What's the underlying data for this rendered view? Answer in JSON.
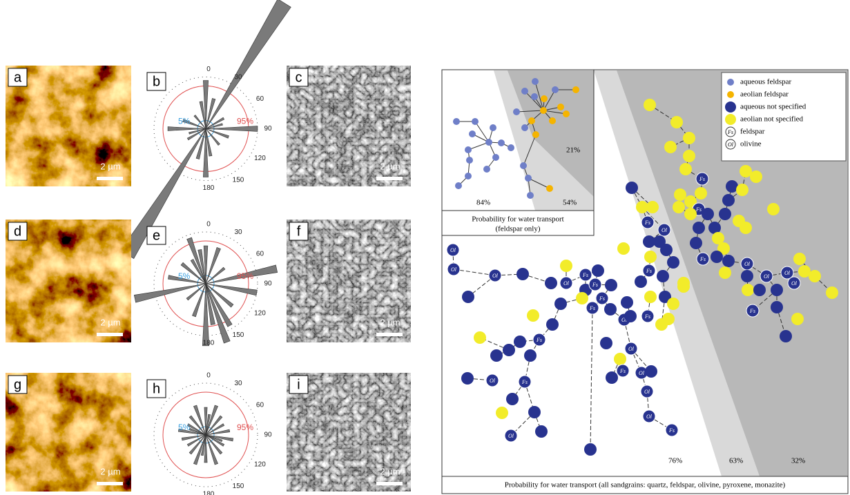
{
  "left": {
    "panel_letters": [
      "a",
      "b",
      "c",
      "d",
      "e",
      "f",
      "g",
      "h",
      "i"
    ],
    "scale_label": "2 µm",
    "rose": {
      "angle_labels": [
        "0",
        "30",
        "60",
        "90",
        "120",
        "150",
        "180"
      ],
      "inner": "5%",
      "outer": "95%"
    }
  },
  "right": {
    "legend": [
      {
        "label": "aqueous feldspar"
      },
      {
        "label": "aeolian feldspar"
      },
      {
        "label": "aqueous not specified"
      },
      {
        "label": "aeolian not specified"
      },
      {
        "symbol": "Fs",
        "label": "feldspar"
      },
      {
        "symbol": "Ol",
        "label": "olivine"
      }
    ],
    "top_box": {
      "percentages": [
        "84%",
        "54%",
        "21%"
      ],
      "caption": [
        "Probability for water transport",
        "(feldspar only)"
      ]
    },
    "main": {
      "percentages": [
        "76%",
        "63%",
        "32%"
      ],
      "caption": "Probability for water transport (all sandgrains: quartz, feldspar, olivine, pyroxene, monazite)"
    }
  }
}
